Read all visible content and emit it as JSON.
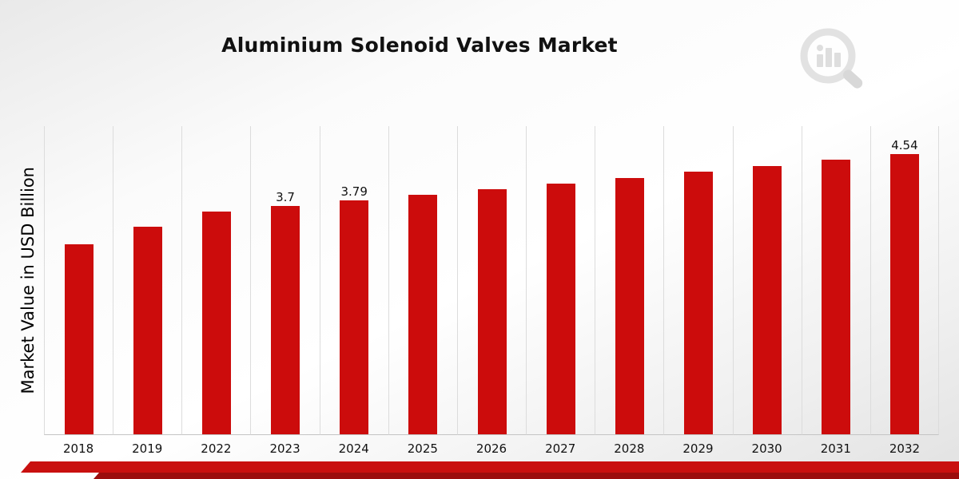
{
  "page": {
    "title": "Aluminium Solenoid Valves Market",
    "ylabel": "Market Value in USD Billion"
  },
  "colors": {
    "bar_red": "#cc0c0c",
    "stripe_red": "#c9100f",
    "stripe_dark_red": "#9b0d0d",
    "watermark_gray": "#d9d9d9",
    "gridline": "#dcdcdc"
  },
  "chart_data": {
    "type": "bar",
    "title": "Aluminium Solenoid Valves Market",
    "xlabel": "",
    "ylabel": "Market Value in USD Billion",
    "categories": [
      "2018",
      "2019",
      "2022",
      "2023",
      "2024",
      "2025",
      "2026",
      "2027",
      "2028",
      "2029",
      "2030",
      "2031",
      "2032"
    ],
    "values": [
      3.08,
      3.36,
      3.61,
      3.7,
      3.79,
      3.88,
      3.97,
      4.06,
      4.15,
      4.25,
      4.34,
      4.44,
      4.54
    ],
    "bar_labels": [
      "",
      "",
      "",
      "3.7",
      "3.79",
      "",
      "",
      "",
      "",
      "",
      "",
      "",
      "4.54"
    ],
    "ylim": [
      0,
      5
    ],
    "bar_color": "#cc0c0c",
    "grid": "vertical",
    "legend": "none"
  }
}
